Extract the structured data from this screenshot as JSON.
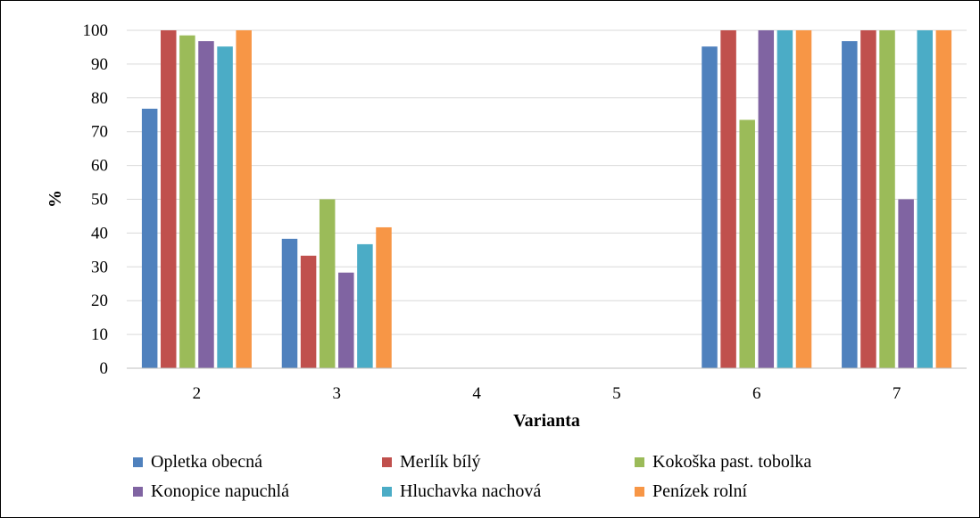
{
  "chart_data": {
    "type": "bar",
    "title": "",
    "xlabel": "Varianta",
    "ylabel": "%",
    "ylim": [
      0,
      100
    ],
    "yticks": [
      0,
      10,
      20,
      30,
      40,
      50,
      60,
      70,
      80,
      90,
      100
    ],
    "grid": true,
    "legend_position": "bottom",
    "categories": [
      "2",
      "3",
      "4",
      "5",
      "6",
      "7"
    ],
    "series": [
      {
        "name": "Opletka obecná",
        "color": "#4F81BD",
        "values": [
          76.8,
          38.3,
          0,
          0,
          95.2,
          96.8
        ]
      },
      {
        "name": "Merlík bílý",
        "color": "#C0504D",
        "values": [
          100,
          33.3,
          0,
          0,
          100,
          100
        ]
      },
      {
        "name": "Kokoška past. tobolka",
        "color": "#9BBB59",
        "values": [
          98.5,
          50,
          0,
          0,
          73.5,
          100
        ]
      },
      {
        "name": "Konopice napuchlá",
        "color": "#8064A2",
        "values": [
          96.8,
          28.3,
          0,
          0,
          100,
          50
        ]
      },
      {
        "name": "Hluchavka nachová",
        "color": "#4BACC6",
        "values": [
          95.2,
          36.7,
          0,
          0,
          100,
          100
        ]
      },
      {
        "name": "Penízek rolní",
        "color": "#F79646",
        "values": [
          100,
          41.7,
          0,
          0,
          100,
          100
        ]
      }
    ]
  }
}
